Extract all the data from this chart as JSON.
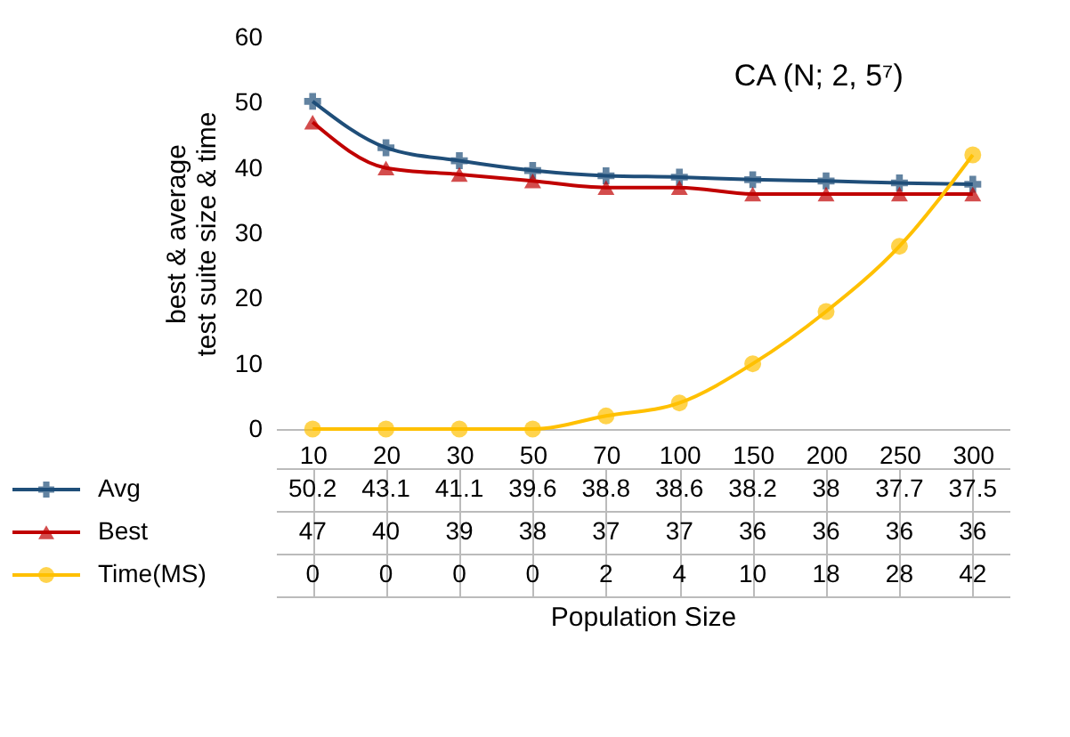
{
  "chart_data": {
    "type": "line",
    "title": "CA (N; 2, 5⁷)",
    "xlabel": "Population Size",
    "ylabel": "best & average\ntest suite size & time",
    "categories": [
      "10",
      "20",
      "30",
      "50",
      "70",
      "100",
      "150",
      "200",
      "250",
      "300"
    ],
    "series": [
      {
        "name": "Avg",
        "color": "#1f4e79",
        "marker": "cross",
        "values": [
          50.2,
          43.1,
          41.1,
          39.6,
          38.8,
          38.6,
          38.2,
          38,
          37.7,
          37.5
        ]
      },
      {
        "name": "Best",
        "color": "#c00000",
        "marker": "triangle",
        "values": [
          47,
          40,
          39,
          38,
          37,
          37,
          36,
          36,
          36,
          36
        ]
      },
      {
        "name": "Time(MS)",
        "color": "#ffc000",
        "marker": "circle",
        "values": [
          0,
          0,
          0,
          0,
          2,
          4,
          10,
          18,
          28,
          42
        ]
      }
    ],
    "ylim": [
      0,
      60
    ],
    "yticks": [
      0,
      10,
      20,
      30,
      40,
      50,
      60
    ],
    "data_labels": true,
    "legend": "bottom"
  }
}
